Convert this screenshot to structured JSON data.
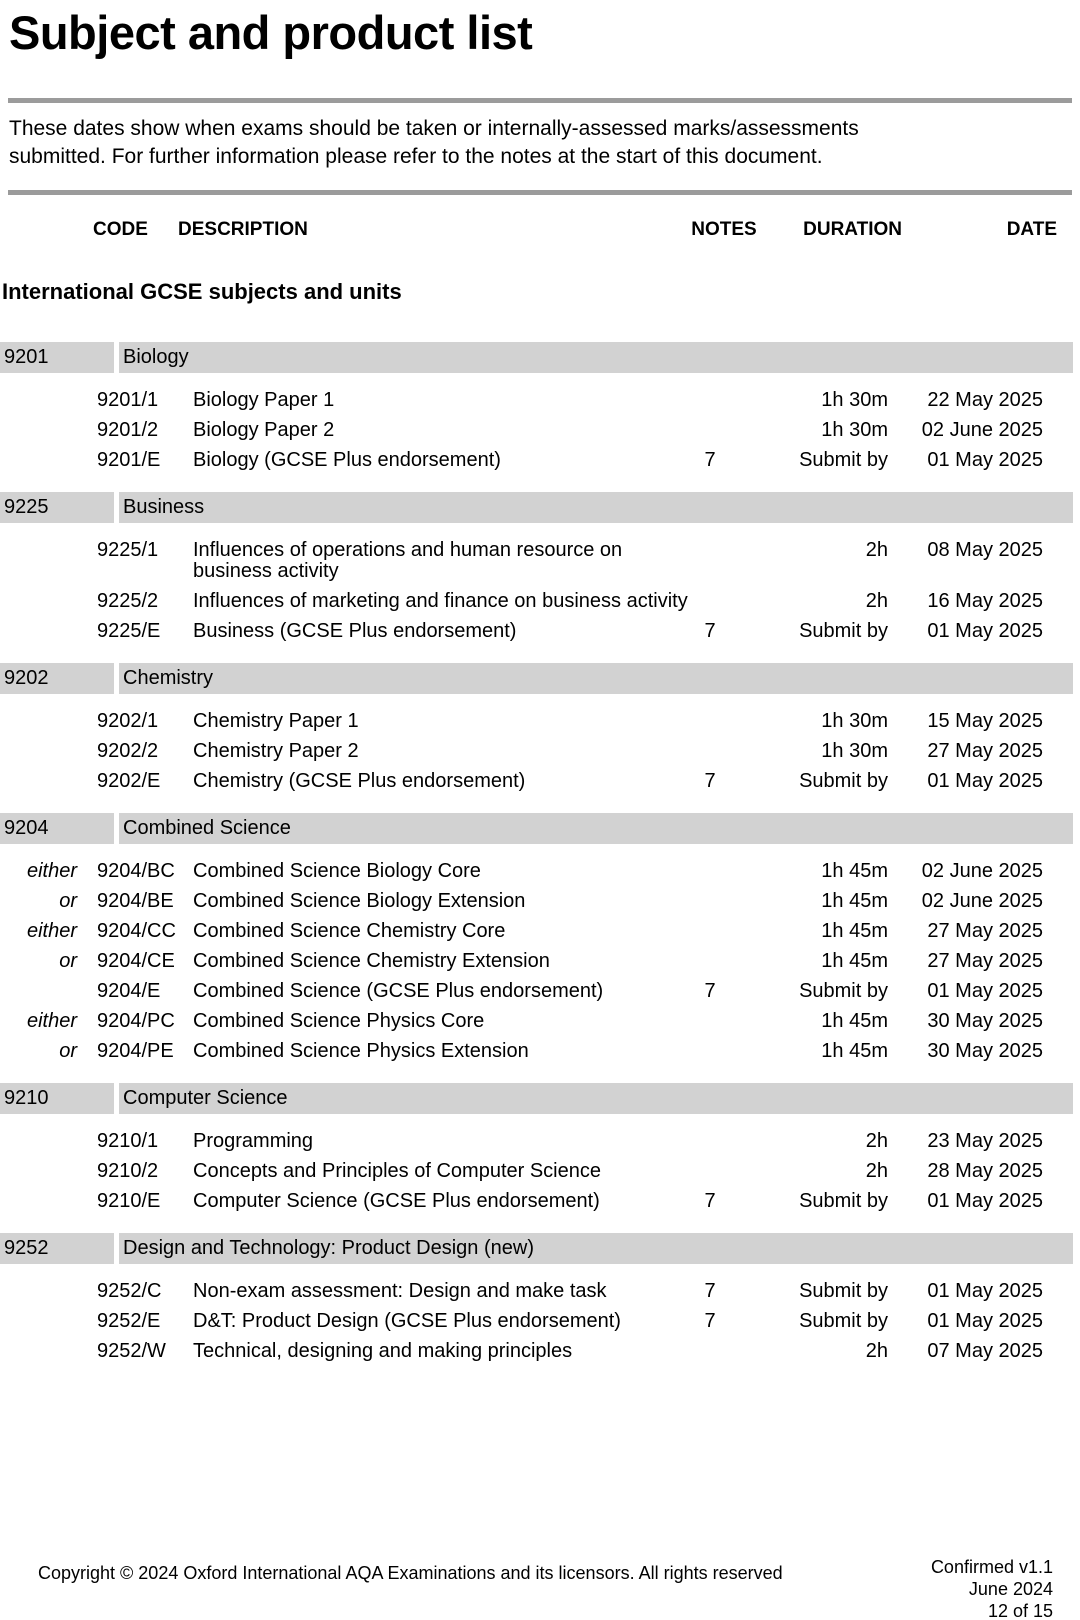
{
  "page": {
    "title": "Subject and product list",
    "intro_lines": [
      "These dates show when exams should be taken or internally-assessed marks/assessments",
      "submitted.  For further information please refer to the notes at the start of this document."
    ],
    "section_heading": "International GCSE subjects and units"
  },
  "table": {
    "headers": {
      "code": "CODE",
      "description": "DESCRIPTION",
      "notes": "NOTES",
      "duration": "DURATION",
      "date": "DATE"
    }
  },
  "subjects": [
    {
      "code": "9201",
      "name": "Biology",
      "rows": [
        {
          "prefix": "",
          "code": "9201/1",
          "description": "Biology Paper 1",
          "notes": "",
          "duration": "1h 30m",
          "date": "22 May 2025"
        },
        {
          "prefix": "",
          "code": "9201/2",
          "description": "Biology Paper 2",
          "notes": "",
          "duration": "1h 30m",
          "date": "02 June 2025"
        },
        {
          "prefix": "",
          "code": "9201/E",
          "description": "Biology (GCSE Plus endorsement)",
          "notes": "7",
          "duration": "Submit by",
          "date": "01 May 2025"
        }
      ]
    },
    {
      "code": "9225",
      "name": "Business",
      "rows": [
        {
          "prefix": "",
          "code": "9225/1",
          "description": "Influences of operations and human resource on\nbusiness activity",
          "notes": "",
          "duration": "2h",
          "date": "08 May 2025"
        },
        {
          "prefix": "",
          "code": "9225/2",
          "description": "Influences of marketing and finance on business activity",
          "notes": "",
          "duration": "2h",
          "date": "16 May 2025"
        },
        {
          "prefix": "",
          "code": "9225/E",
          "description": "Business (GCSE Plus endorsement)",
          "notes": "7",
          "duration": "Submit by",
          "date": "01 May 2025"
        }
      ]
    },
    {
      "code": "9202",
      "name": "Chemistry",
      "rows": [
        {
          "prefix": "",
          "code": "9202/1",
          "description": "Chemistry Paper 1",
          "notes": "",
          "duration": "1h 30m",
          "date": "15 May 2025"
        },
        {
          "prefix": "",
          "code": "9202/2",
          "description": "Chemistry Paper 2",
          "notes": "",
          "duration": "1h 30m",
          "date": "27 May 2025"
        },
        {
          "prefix": "",
          "code": "9202/E",
          "description": "Chemistry (GCSE Plus endorsement)",
          "notes": "7",
          "duration": "Submit by",
          "date": "01 May 2025"
        }
      ]
    },
    {
      "code": "9204",
      "name": "Combined Science",
      "rows": [
        {
          "prefix": "either",
          "code": "9204/BC",
          "description": "Combined Science Biology Core",
          "notes": "",
          "duration": "1h 45m",
          "date": "02 June 2025"
        },
        {
          "prefix": "or",
          "code": "9204/BE",
          "description": "Combined Science Biology Extension",
          "notes": "",
          "duration": "1h 45m",
          "date": "02 June 2025"
        },
        {
          "prefix": "either",
          "code": "9204/CC",
          "description": "Combined Science Chemistry Core",
          "notes": "",
          "duration": "1h 45m",
          "date": "27 May 2025"
        },
        {
          "prefix": "or",
          "code": "9204/CE",
          "description": "Combined Science Chemistry Extension",
          "notes": "",
          "duration": "1h 45m",
          "date": "27 May 2025"
        },
        {
          "prefix": "",
          "code": "9204/E",
          "description": "Combined Science (GCSE Plus endorsement)",
          "notes": "7",
          "duration": "Submit by",
          "date": "01 May 2025"
        },
        {
          "prefix": "either",
          "code": "9204/PC",
          "description": "Combined Science Physics Core",
          "notes": "",
          "duration": "1h 45m",
          "date": "30 May 2025"
        },
        {
          "prefix": "or",
          "code": "9204/PE",
          "description": "Combined Science Physics Extension",
          "notes": "",
          "duration": "1h 45m",
          "date": "30 May 2025"
        }
      ]
    },
    {
      "code": "9210",
      "name": "Computer Science",
      "rows": [
        {
          "prefix": "",
          "code": "9210/1",
          "description": "Programming",
          "notes": "",
          "duration": "2h",
          "date": "23 May 2025"
        },
        {
          "prefix": "",
          "code": "9210/2",
          "description": "Concepts and Principles of Computer Science",
          "notes": "",
          "duration": "2h",
          "date": "28 May 2025"
        },
        {
          "prefix": "",
          "code": "9210/E",
          "description": "Computer Science (GCSE Plus endorsement)",
          "notes": "7",
          "duration": "Submit by",
          "date": "01 May 2025"
        }
      ]
    },
    {
      "code": "9252",
      "name": "Design and Technology: Product Design (new)",
      "rows": [
        {
          "prefix": "",
          "code": "9252/C",
          "description": "Non-exam assessment: Design and make task",
          "notes": "7",
          "duration": "Submit by",
          "date": "01 May 2025"
        },
        {
          "prefix": "",
          "code": "9252/E",
          "description": "D&T: Product Design (GCSE Plus endorsement)",
          "notes": "7",
          "duration": "Submit by",
          "date": "01 May 2025"
        },
        {
          "prefix": "",
          "code": "9252/W",
          "description": "Technical, designing and making principles",
          "notes": "",
          "duration": "2h",
          "date": "07 May 2025"
        }
      ]
    }
  ],
  "footer": {
    "copyright": "Copyright © 2024 Oxford International AQA Examinations and its licensors. All rights reserved",
    "status_lines": [
      "Confirmed v1.1",
      "June 2024",
      "12 of 15"
    ]
  },
  "colors": {
    "band_bg": "#d2d2d2",
    "rule": "#9b9b9b",
    "text": "#000000"
  }
}
